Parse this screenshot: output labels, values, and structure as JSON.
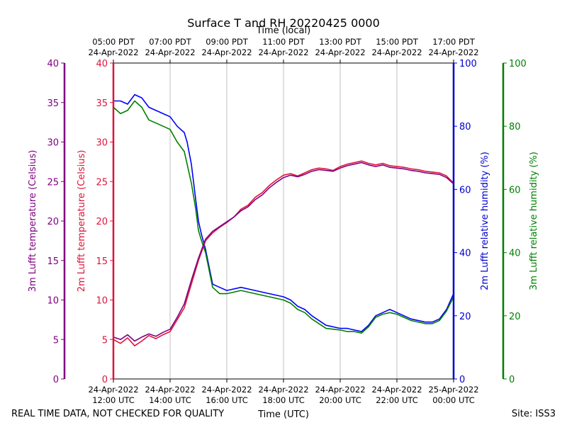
{
  "chart_data": {
    "type": "line",
    "title": "Surface T and RH 20220425 0000",
    "xlabel": "Time (UTC)",
    "xlabel_top": "Time (local)",
    "footer_left": "REAL TIME DATA, NOT CHECKED FOR QUALITY",
    "footer_right": "Site: ISS3",
    "xlim": [
      0,
      12
    ],
    "x_unit": "hours since 24-Apr-2022 12:00 UTC",
    "x_ticks_bottom": [
      {
        "x": 0,
        "line1": "24-Apr-2022",
        "line2": "12:00 UTC"
      },
      {
        "x": 2,
        "line1": "24-Apr-2022",
        "line2": "14:00 UTC"
      },
      {
        "x": 4,
        "line1": "24-Apr-2022",
        "line2": "16:00 UTC"
      },
      {
        "x": 6,
        "line1": "24-Apr-2022",
        "line2": "18:00 UTC"
      },
      {
        "x": 8,
        "line1": "24-Apr-2022",
        "line2": "20:00 UTC"
      },
      {
        "x": 10,
        "line1": "24-Apr-2022",
        "line2": "22:00 UTC"
      },
      {
        "x": 12,
        "line1": "25-Apr-2022",
        "line2": "00:00 UTC"
      }
    ],
    "x_ticks_top": [
      {
        "x": 0,
        "line1": "05:00 PDT",
        "line2": "24-Apr-2022"
      },
      {
        "x": 2,
        "line1": "07:00 PDT",
        "line2": "24-Apr-2022"
      },
      {
        "x": 4,
        "line1": "09:00 PDT",
        "line2": "24-Apr-2022"
      },
      {
        "x": 6,
        "line1": "11:00 PDT",
        "line2": "24-Apr-2022"
      },
      {
        "x": 8,
        "line1": "13:00 PDT",
        "line2": "24-Apr-2022"
      },
      {
        "x": 10,
        "line1": "15:00 PDT",
        "line2": "24-Apr-2022"
      },
      {
        "x": 12,
        "line1": "17:00 PDT",
        "line2": "24-Apr-2022"
      }
    ],
    "axes": [
      {
        "id": "t3",
        "label": "3m Lufft temperature (Celsius)",
        "ylim": [
          0,
          40
        ],
        "ticks": [
          "0",
          "5",
          "10",
          "15",
          "20",
          "25",
          "30",
          "35",
          "40"
        ],
        "color": "#800080",
        "side": "left-outer"
      },
      {
        "id": "t2",
        "label": "2m Lufft temperature (Celsius)",
        "ylim": [
          0,
          40
        ],
        "ticks": [
          "0",
          "5",
          "10",
          "15",
          "20",
          "25",
          "30",
          "35",
          "40"
        ],
        "color": "#dc143c",
        "side": "left-inner"
      },
      {
        "id": "rh2",
        "label": "2m Lufft relative humidity (%)",
        "ylim": [
          0,
          100
        ],
        "ticks": [
          "0",
          "20",
          "40",
          "60",
          "80",
          "100"
        ],
        "color": "#0000cd",
        "side": "right-inner"
      },
      {
        "id": "rh3",
        "label": "3m Lufft relative humidity (%)",
        "ylim": [
          0,
          100
        ],
        "ticks": [
          "0",
          "20",
          "40",
          "60",
          "80",
          "100"
        ],
        "color": "#008000",
        "side": "right-outer"
      }
    ],
    "series": [
      {
        "name": "2m Lufft relative humidity",
        "axis": "rh2",
        "color": "#0000ff",
        "x": [
          0,
          0.25,
          0.5,
          0.75,
          1,
          1.25,
          1.5,
          1.75,
          2,
          2.25,
          2.5,
          2.6,
          2.75,
          2.9,
          3,
          3.1,
          3.25,
          3.5,
          3.75,
          4,
          4.5,
          5,
          5.5,
          6,
          6.25,
          6.5,
          6.75,
          7,
          7.5,
          8,
          8.25,
          8.5,
          8.75,
          9,
          9.25,
          9.5,
          9.75,
          10,
          10.5,
          11,
          11.25,
          11.5,
          11.75,
          12
        ],
        "y": [
          88,
          88,
          87,
          90,
          89,
          86,
          85,
          84,
          83,
          80,
          78,
          75,
          68,
          57,
          50,
          46,
          41,
          30,
          29,
          28,
          29,
          28,
          27,
          26,
          25,
          23,
          22,
          20,
          17,
          16,
          16,
          15.5,
          15,
          17,
          20,
          21,
          22,
          21,
          19,
          18,
          18,
          19,
          22,
          27
        ]
      },
      {
        "name": "3m Lufft relative humidity",
        "axis": "rh3",
        "color": "#008000",
        "x": [
          0,
          0.25,
          0.5,
          0.75,
          1,
          1.25,
          1.5,
          1.75,
          2,
          2.25,
          2.5,
          2.6,
          2.75,
          2.9,
          3,
          3.1,
          3.25,
          3.5,
          3.75,
          4,
          4.5,
          5,
          5.5,
          6,
          6.25,
          6.5,
          6.75,
          7,
          7.5,
          8,
          8.25,
          8.5,
          8.75,
          9,
          9.25,
          9.5,
          9.75,
          10,
          10.5,
          11,
          11.25,
          11.5,
          11.75,
          12
        ],
        "y": [
          86,
          84,
          85,
          88,
          86,
          82,
          81,
          80,
          79,
          75,
          72,
          68,
          62,
          54,
          47,
          44,
          40,
          29,
          27,
          27,
          28,
          27,
          26,
          25,
          24,
          22,
          21,
          19,
          16,
          15.5,
          15,
          15,
          14.5,
          16.5,
          19.5,
          20.5,
          21,
          20.5,
          18.5,
          17.5,
          17.5,
          18.5,
          21.5,
          26
        ]
      },
      {
        "name": "2m Lufft temperature",
        "axis": "t2",
        "color": "#dc143c",
        "x": [
          0,
          0.25,
          0.5,
          0.75,
          1,
          1.25,
          1.5,
          1.75,
          2,
          2.25,
          2.5,
          2.75,
          3,
          3.25,
          3.5,
          3.75,
          4,
          4.25,
          4.5,
          4.75,
          5,
          5.25,
          5.5,
          5.75,
          6,
          6.25,
          6.5,
          6.75,
          7,
          7.25,
          7.5,
          7.75,
          8,
          8.25,
          8.5,
          8.75,
          9,
          9.25,
          9.5,
          9.75,
          10,
          10.25,
          10.5,
          10.75,
          11,
          11.25,
          11.5,
          11.75,
          12
        ],
        "y": [
          5,
          4.5,
          5.2,
          4.2,
          4.8,
          5.5,
          5.1,
          5.6,
          6,
          7.5,
          9,
          12,
          15,
          17.5,
          18.5,
          19.2,
          19.8,
          20.5,
          21.5,
          22,
          23,
          23.6,
          24.5,
          25.2,
          25.8,
          26,
          25.7,
          26.1,
          26.5,
          26.7,
          26.6,
          26.4,
          26.9,
          27.2,
          27.4,
          27.6,
          27.3,
          27.1,
          27.3,
          27,
          26.9,
          26.8,
          26.6,
          26.5,
          26.3,
          26.2,
          26.1,
          25.7,
          24.8
        ]
      },
      {
        "name": "3m Lufft temperature",
        "axis": "t3",
        "color": "#800080",
        "x": [
          0,
          0.25,
          0.5,
          0.75,
          1,
          1.25,
          1.5,
          1.75,
          2,
          2.25,
          2.5,
          2.75,
          3,
          3.25,
          3.5,
          3.75,
          4,
          4.25,
          4.5,
          4.75,
          5,
          5.25,
          5.5,
          5.75,
          6,
          6.25,
          6.5,
          6.75,
          7,
          7.25,
          7.5,
          7.75,
          8,
          8.25,
          8.5,
          8.75,
          9,
          9.25,
          9.5,
          9.75,
          10,
          10.25,
          10.5,
          10.75,
          11,
          11.25,
          11.5,
          11.75,
          12
        ],
        "y": [
          5.3,
          5,
          5.6,
          4.8,
          5.3,
          5.7,
          5.4,
          5.9,
          6.3,
          7.8,
          9.5,
          12.5,
          15.3,
          17.7,
          18.7,
          19.3,
          19.9,
          20.5,
          21.3,
          21.8,
          22.7,
          23.3,
          24.2,
          24.9,
          25.5,
          25.8,
          25.6,
          25.9,
          26.3,
          26.5,
          26.4,
          26.3,
          26.7,
          27,
          27.2,
          27.4,
          27.1,
          26.9,
          27.1,
          26.8,
          26.7,
          26.6,
          26.4,
          26.3,
          26.1,
          26,
          25.9,
          25.5,
          24.7
        ]
      }
    ]
  }
}
